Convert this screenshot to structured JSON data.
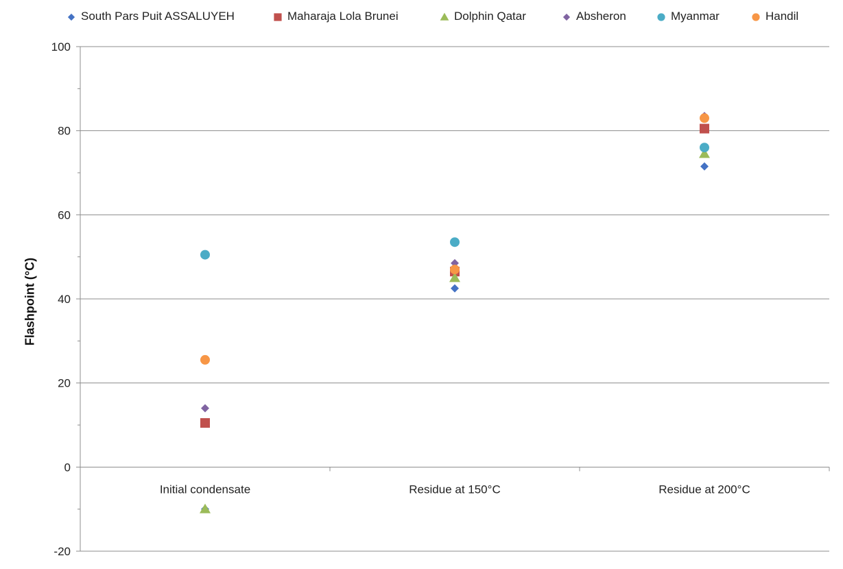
{
  "chart_data": {
    "type": "scatter",
    "title": "",
    "xlabel": "",
    "ylabel": "Flashpoint (°C)",
    "ylim": [
      -20,
      100
    ],
    "yticks": [
      -20,
      0,
      20,
      40,
      60,
      80,
      100
    ],
    "categories": [
      "Initial condensate",
      "Residue at 150°C",
      "Residue at 200°C"
    ],
    "grid": true,
    "legend_position": "top",
    "series": [
      {
        "name": "South Pars Puit ASSALUYEH",
        "marker": "diamond",
        "color": "#4472C4",
        "values": [
          -10,
          42.5,
          71.5
        ]
      },
      {
        "name": "Maharaja Lola Brunei",
        "marker": "square",
        "color": "#C0504D",
        "values": [
          10.5,
          46.5,
          80.5
        ]
      },
      {
        "name": "Dolphin Qatar",
        "marker": "triangle",
        "color": "#9BBB59",
        "values": [
          -10,
          45,
          74.5
        ]
      },
      {
        "name": "Absheron",
        "marker": "diamond",
        "color": "#8064A2",
        "values": [
          14,
          48.5,
          83.5
        ]
      },
      {
        "name": "Myanmar",
        "marker": "circle",
        "color": "#4BACC6",
        "values": [
          50.5,
          53.5,
          76
        ]
      },
      {
        "name": "Handil",
        "marker": "circle",
        "color": "#F79646",
        "values": [
          25.5,
          47,
          83
        ]
      }
    ]
  }
}
